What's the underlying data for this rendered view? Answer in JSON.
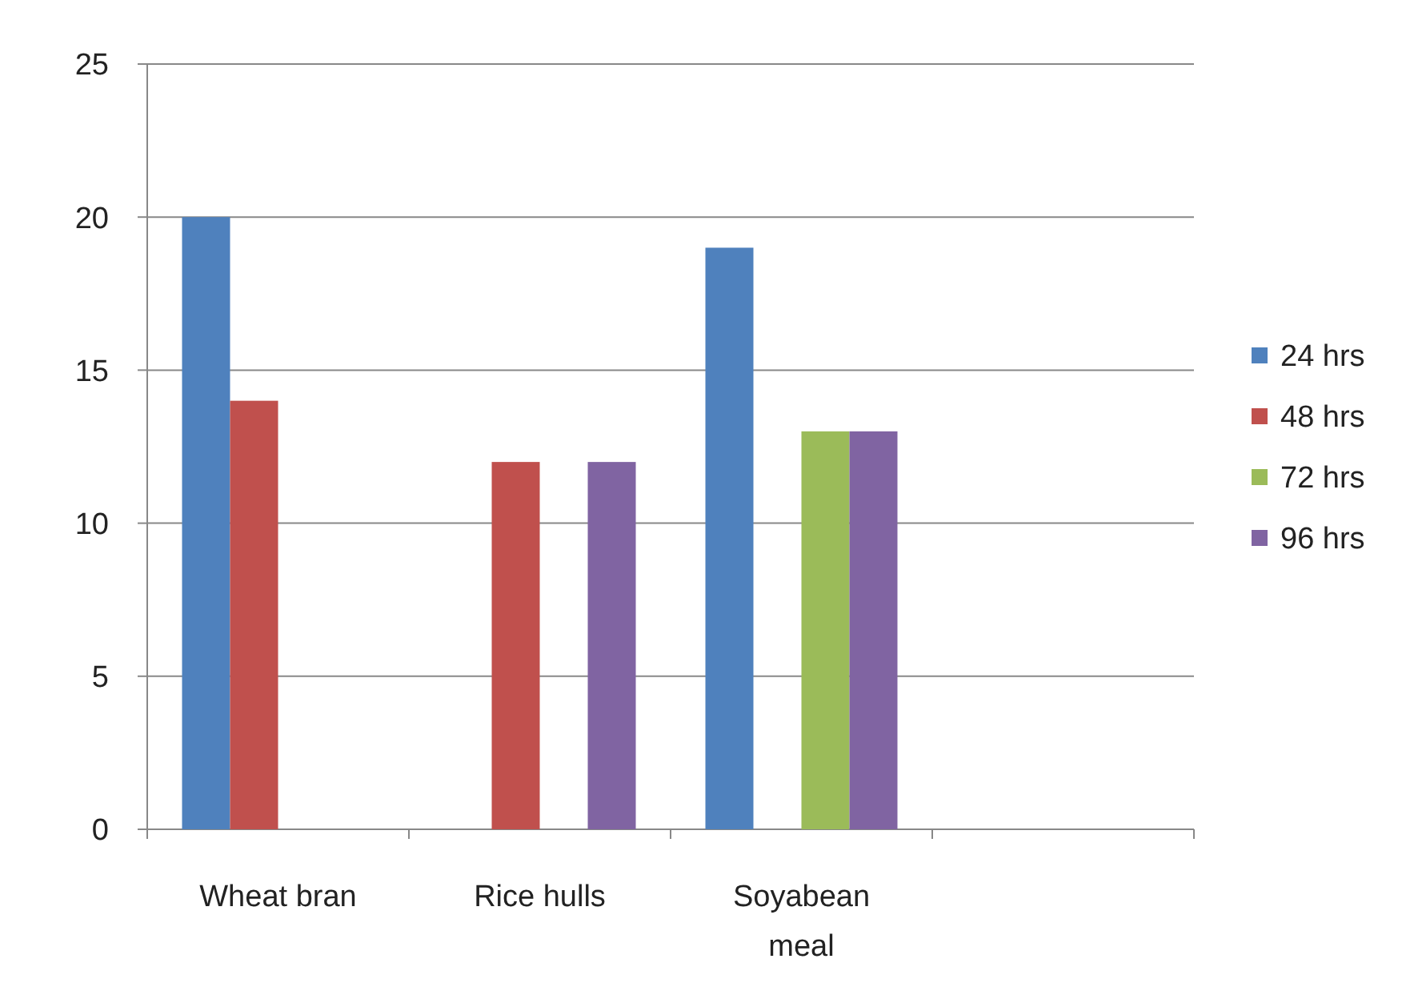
{
  "chart_data": {
    "type": "bar",
    "categories": [
      "Wheat bran",
      "Rice hulls",
      "Soyabean meal",
      null
    ],
    "series": [
      {
        "name": "24 hrs",
        "color": "#4f81bd",
        "values": [
          20,
          null,
          19,
          null
        ]
      },
      {
        "name": "48 hrs",
        "color": "#c0504d",
        "values": [
          14,
          12,
          null,
          null
        ]
      },
      {
        "name": "72 hrs",
        "color": "#9bbb59",
        "values": [
          null,
          null,
          13,
          null
        ]
      },
      {
        "name": "96 hrs",
        "color": "#8064a2",
        "values": [
          null,
          12,
          13,
          null
        ]
      }
    ],
    "ylim": [
      0,
      25
    ],
    "yticks": [
      0,
      5,
      10,
      15,
      20,
      25
    ],
    "grid": "y",
    "legend": "right"
  }
}
